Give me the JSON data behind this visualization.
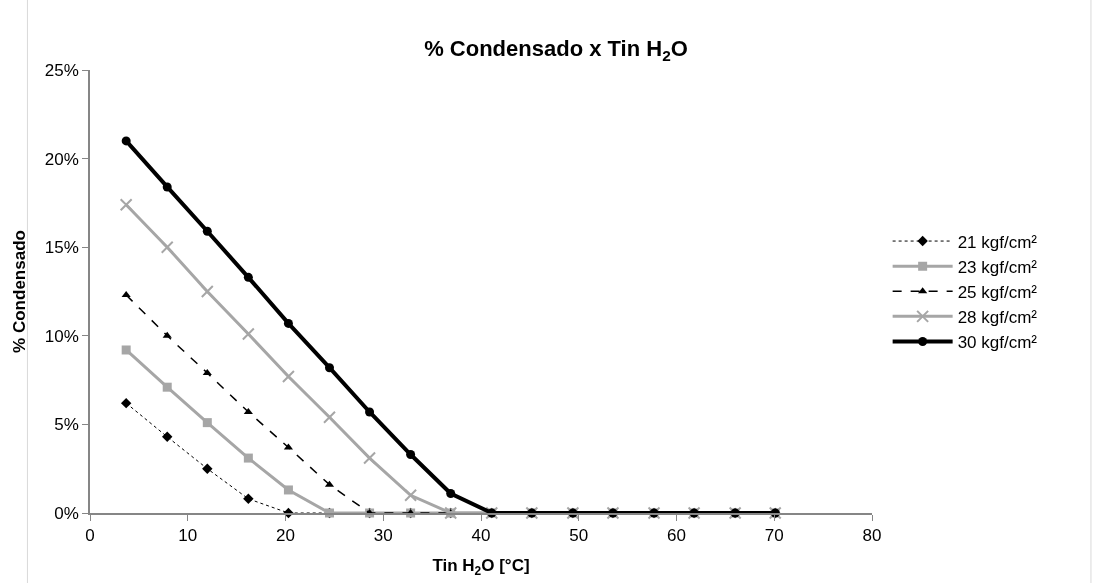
{
  "chart_data": {
    "type": "line",
    "title": "% Condensado x Tin H$_{2}$O",
    "xlabel": "Tin H$_{2}$O [°C]",
    "ylabel": "% Condensado",
    "x": [
      3.7,
      7.9,
      12.0,
      16.2,
      20.3,
      24.5,
      28.6,
      32.8,
      36.9,
      41.1,
      45.2,
      49.4,
      53.5,
      57.7,
      61.8,
      66.0,
      70.1
    ],
    "series": [
      {
        "name": "21 kgf/cm²",
        "color": "#000000",
        "marker": "diamond",
        "line_style": "dotted",
        "values": [
          6.2,
          4.3,
          2.5,
          0.8,
          0,
          0,
          0,
          0,
          0,
          0,
          0,
          0,
          0,
          0,
          0,
          0,
          0
        ]
      },
      {
        "name": "23 kgf/cm²",
        "color": "#a6a6a6",
        "marker": "square",
        "line_style": "solid",
        "values": [
          9.2,
          7.1,
          5.1,
          3.1,
          1.3,
          0,
          0,
          0,
          0,
          0,
          0,
          0,
          0,
          0,
          0,
          0,
          0
        ]
      },
      {
        "name": "25 kgf/cm²",
        "color": "#000000",
        "marker": "triangle",
        "line_style": "dashed",
        "values": [
          12.3,
          10.0,
          7.9,
          5.7,
          3.7,
          1.6,
          0,
          0,
          0,
          0,
          0,
          0,
          0,
          0,
          0,
          0,
          0
        ]
      },
      {
        "name": "28 kgf/cm²",
        "color": "#a6a6a6",
        "marker": "cross",
        "line_style": "solid",
        "values": [
          17.4,
          15.0,
          12.5,
          10.1,
          7.7,
          5.4,
          3.1,
          1.0,
          0,
          0,
          0,
          0,
          0,
          0,
          0,
          0,
          0
        ]
      },
      {
        "name": "30 kgf/cm²",
        "color": "#000000",
        "marker": "circle",
        "line_style": "solid",
        "values": [
          21.0,
          18.4,
          15.9,
          13.3,
          10.7,
          8.2,
          5.7,
          3.3,
          1.1,
          0,
          0,
          0,
          0,
          0,
          0,
          0,
          0
        ]
      }
    ],
    "xlim": [
      0,
      80
    ],
    "xticks": [
      0,
      10,
      20,
      30,
      40,
      50,
      60,
      70,
      80
    ],
    "ylim": [
      0,
      25
    ],
    "yticks": [
      {
        "value": 0,
        "label": "0%"
      },
      {
        "value": 5,
        "label": "5%"
      },
      {
        "value": 10,
        "label": "10%"
      },
      {
        "value": 15,
        "label": "15%"
      },
      {
        "value": 20,
        "label": "20%"
      },
      {
        "value": 25,
        "label": "25%"
      }
    ],
    "grid": false,
    "legend": "right"
  }
}
